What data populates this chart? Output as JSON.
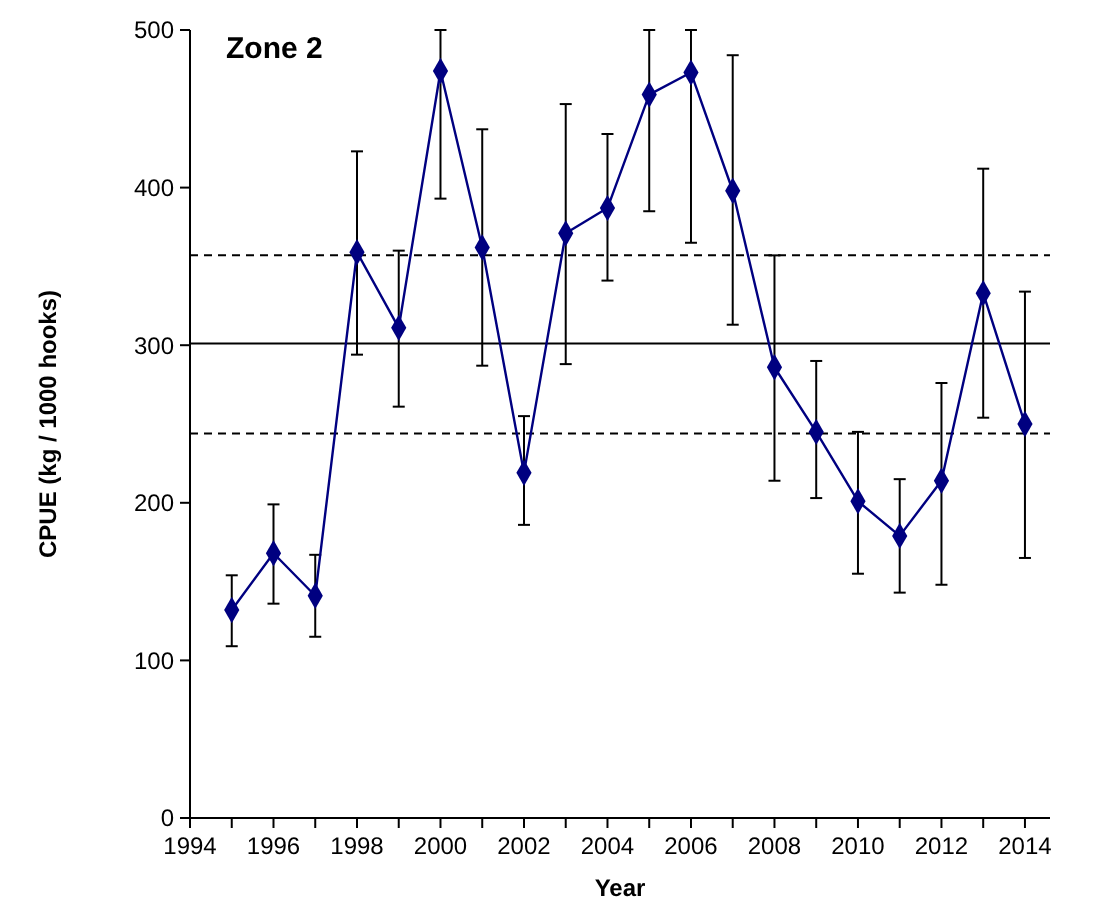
{
  "chart_data": {
    "type": "line",
    "title": "Zone 2",
    "xlabel": "Year",
    "ylabel": "CPUE (kg / 1000 hooks)",
    "x": [
      1995,
      1996,
      1997,
      1998,
      1999,
      2000,
      2001,
      2002,
      2003,
      2004,
      2005,
      2006,
      2007,
      2008,
      2009,
      2010,
      2011,
      2012,
      2013,
      2014
    ],
    "series": [
      {
        "color": "#000080",
        "values": [
          132,
          168,
          141,
          359,
          311,
          474,
          362,
          219,
          371,
          387,
          459,
          473,
          398,
          286,
          245,
          201,
          179,
          214,
          333,
          250
        ],
        "errors": [
          [
            109,
            154
          ],
          [
            136,
            199
          ],
          [
            115,
            167
          ],
          [
            294,
            423
          ],
          [
            261,
            360
          ],
          [
            393,
            500
          ],
          [
            287,
            437
          ],
          [
            186,
            255
          ],
          [
            288,
            453
          ],
          [
            341,
            434
          ],
          [
            385,
            500
          ],
          [
            365,
            500
          ],
          [
            313,
            484
          ],
          [
            214,
            357
          ],
          [
            203,
            290
          ],
          [
            155,
            245
          ],
          [
            143,
            215
          ],
          [
            148,
            276
          ],
          [
            254,
            412
          ],
          [
            165,
            334
          ]
        ]
      }
    ],
    "marker": "diamond",
    "line_style": "solid",
    "grid": false,
    "xlim": [
      1994,
      2014.6
    ],
    "xticks": [
      1994,
      {
        "value": 1995,
        "label": null
      },
      1996,
      {
        "value": 1997,
        "label": null
      },
      1998,
      {
        "value": 1999,
        "label": null
      },
      2000,
      {
        "value": 2001,
        "label": null
      },
      2002,
      {
        "value": 2003,
        "label": null
      },
      2004,
      {
        "value": 2005,
        "label": null
      },
      2006,
      {
        "value": 2007,
        "label": null
      },
      2008,
      {
        "value": 2009,
        "label": null
      },
      2010,
      {
        "value": 2011,
        "label": null
      },
      2012,
      {
        "value": 2013,
        "label": null
      },
      2014
    ],
    "ylim": [
      0,
      500
    ],
    "yticks": [
      0,
      100,
      200,
      300,
      400,
      500
    ],
    "ref_lines": [
      {
        "axis": "y",
        "value": 301,
        "color": "#000000",
        "line_style": "solid"
      },
      {
        "axis": "y",
        "value": 357,
        "color": "#000000",
        "line_style": "dashed"
      },
      {
        "axis": "y",
        "value": 244,
        "color": "#000000",
        "line_style": "dashed"
      }
    ]
  }
}
